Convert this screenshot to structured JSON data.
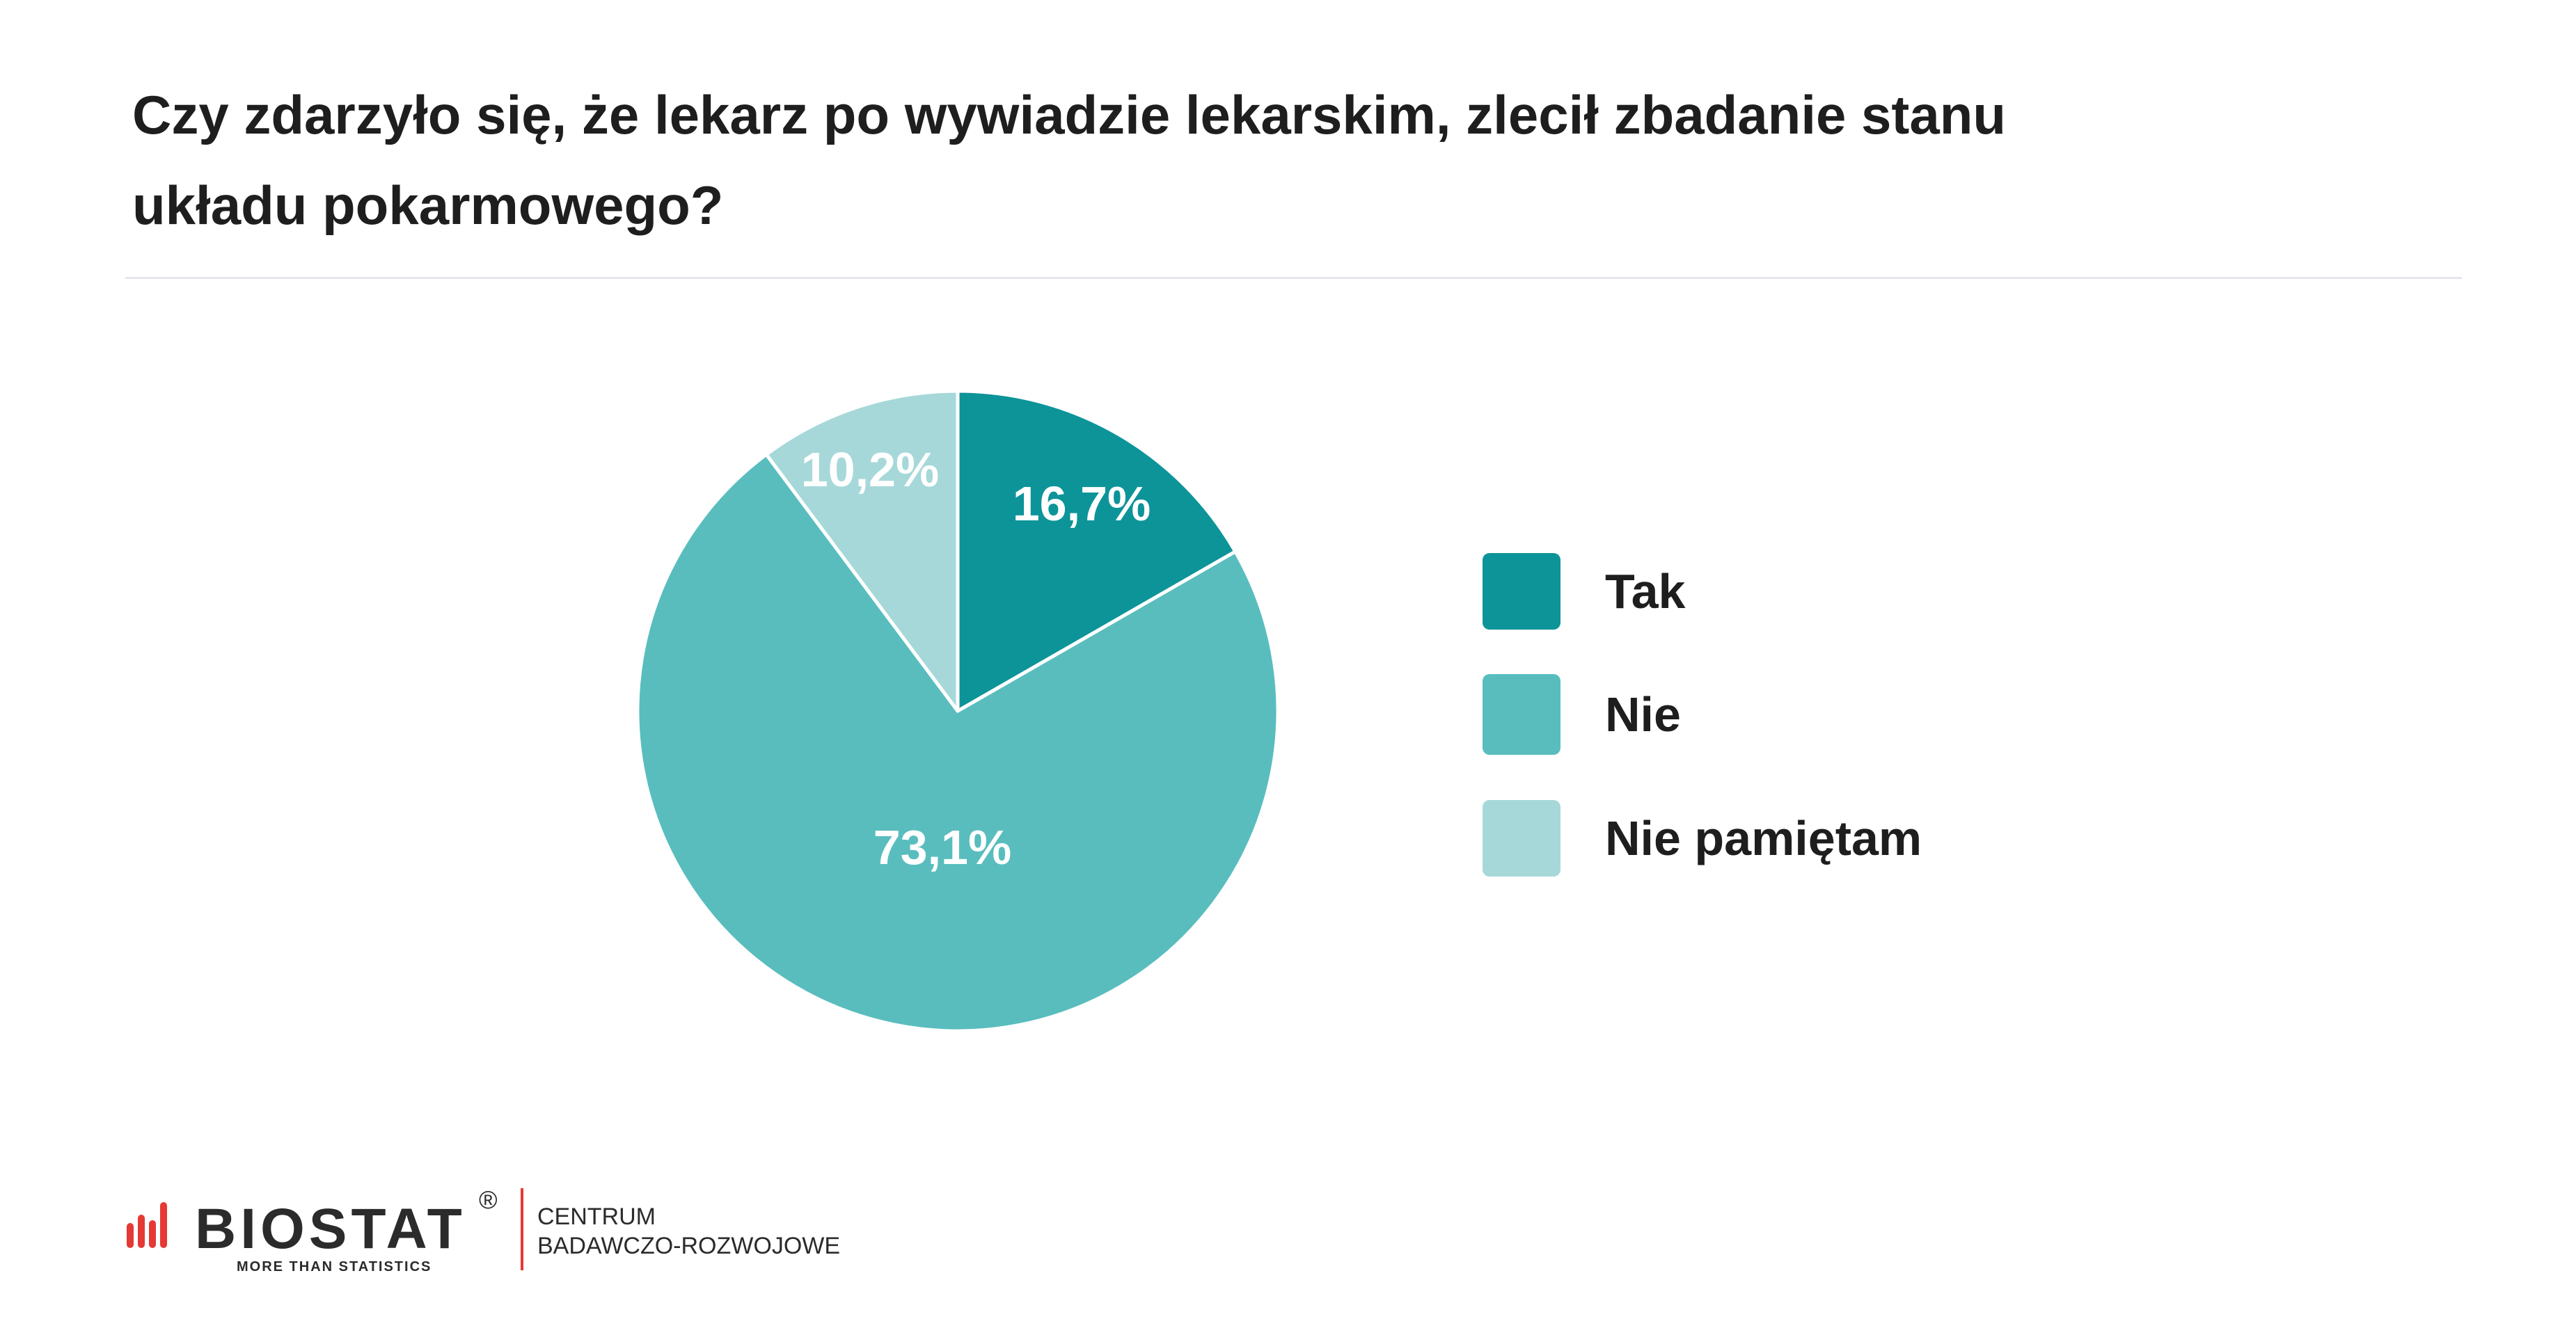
{
  "chart_data": {
    "type": "pie",
    "title": "Czy zdarzyło się, że lekarz po wywiadzie lekarskim, zlecił zbadanie stanu układu pokarmowego?",
    "title_lines": [
      "Czy zdarzyło się, że lekarz po wywiadzie lekarskim, zlecił zbadanie stanu",
      "układu pokarmowego?"
    ],
    "legend_position": "right",
    "slices": [
      {
        "label": "Tak",
        "value": 16.7,
        "display": "16,7%",
        "color": "#0c9499"
      },
      {
        "label": "Nie",
        "value": 73.1,
        "display": "73,1%",
        "color": "#59bdbe"
      },
      {
        "label": "Nie pamiętam",
        "value": 10.2,
        "display": "10,2%",
        "color": "#a7d8d9"
      }
    ]
  },
  "footer": {
    "logo_text": "BIOSTAT",
    "logo_registered": "®",
    "logo_tagline": "MORE THAN STATISTICS",
    "org_line1": "CENTRUM",
    "org_line2": "BADAWCZO-ROZWOJOWE",
    "logo_bar_color": "#e53935"
  }
}
